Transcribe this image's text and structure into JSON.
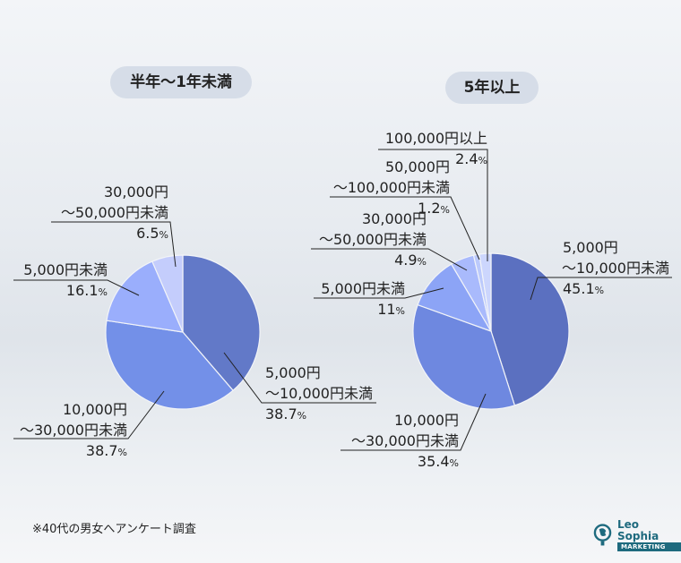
{
  "chart_data": [
    {
      "type": "pie",
      "title": "半年〜1年未満",
      "slices": [
        {
          "label": "5,000円〜10,000円未満",
          "value": 38.7,
          "color": "#6279c8"
        },
        {
          "label": "10,000円〜30,000円未満",
          "value": 38.7,
          "color": "#7390e8"
        },
        {
          "label": "5,000円未満",
          "value": 16.1,
          "color": "#9aaefc"
        },
        {
          "label": "30,000円〜50,000円未満",
          "value": 6.5,
          "color": "#c4cdfc"
        }
      ]
    },
    {
      "type": "pie",
      "title": "5年以上",
      "slices": [
        {
          "label": "5,000円〜10,000円未満",
          "value": 45.1,
          "color": "#5b70c0"
        },
        {
          "label": "10,000円〜30,000円未満",
          "value": 35.4,
          "color": "#6e88e0"
        },
        {
          "label": "5,000円未満",
          "value": 11,
          "color": "#8ca4f6"
        },
        {
          "label": "30,000円〜50,000円未満",
          "value": 4.9,
          "color": "#a9bafc"
        },
        {
          "label": "50,000円〜100,000円未満",
          "value": 1.2,
          "color": "#bccafc"
        },
        {
          "label": "100,000円以上",
          "value": 2.4,
          "color": "#ccd6fd"
        }
      ]
    }
  ],
  "labels": {
    "left": [
      {
        "l1": "5,000円",
        "l2": "〜10,000円未満",
        "v": "38.7"
      },
      {
        "l1": "10,000円",
        "l2": "〜30,000円未満",
        "v": "38.7"
      },
      {
        "l1": "5,000円未満",
        "v": "16.1"
      },
      {
        "l1": "30,000円",
        "l2": "〜50,000円未満",
        "v": "6.5"
      }
    ],
    "right": [
      {
        "l1": "5,000円",
        "l2": "〜10,000円未満",
        "v": "45.1"
      },
      {
        "l1": "10,000円",
        "l2": "〜30,000円未満",
        "v": "35.4"
      },
      {
        "l1": "5,000円未満",
        "v": "11"
      },
      {
        "l1": "30,000円",
        "l2": "〜50,000円未満",
        "v": "4.9"
      },
      {
        "l1": "50,000円",
        "l2": "〜100,000円未満",
        "v": "1.2"
      },
      {
        "l1": "100,000円以上",
        "v": "2.4"
      }
    ],
    "unit": "%"
  },
  "footnote": "※40代の男女へアンケート調査",
  "logo": {
    "name": "Leo Sophia",
    "sub": "MARKETING",
    "color": "#1e6a7e"
  }
}
